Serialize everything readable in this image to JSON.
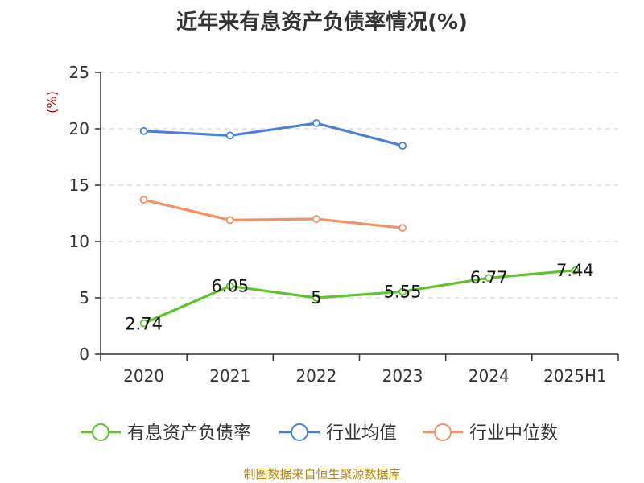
{
  "title": "近年来有息资产负债率情况(%)",
  "unit_label": "(%)",
  "source": "制图数据来自恒生聚源数据库",
  "chart_data": {
    "type": "line",
    "categories": [
      "2020",
      "2021",
      "2022",
      "2023",
      "2024",
      "2025H1"
    ],
    "ylim": [
      0,
      25
    ],
    "yticks": [
      0,
      5,
      10,
      15,
      20,
      25
    ],
    "grid": true,
    "legend_position": "bottom",
    "series": [
      {
        "name": "有息资产负债率",
        "color": "#5dc42a",
        "values": [
          2.74,
          6.05,
          5,
          5.55,
          6.77,
          7.44
        ],
        "labels": [
          "2.74",
          "6.05",
          "5",
          "5.55",
          "6.77",
          "7.44"
        ]
      },
      {
        "name": "行业均值",
        "color": "#4a7fdc",
        "values": [
          19.8,
          19.4,
          20.5,
          18.5,
          null,
          null
        ]
      },
      {
        "name": "行业中位数",
        "color": "#f59062",
        "values": [
          13.7,
          11.9,
          12.0,
          11.2,
          null,
          null
        ]
      }
    ]
  }
}
